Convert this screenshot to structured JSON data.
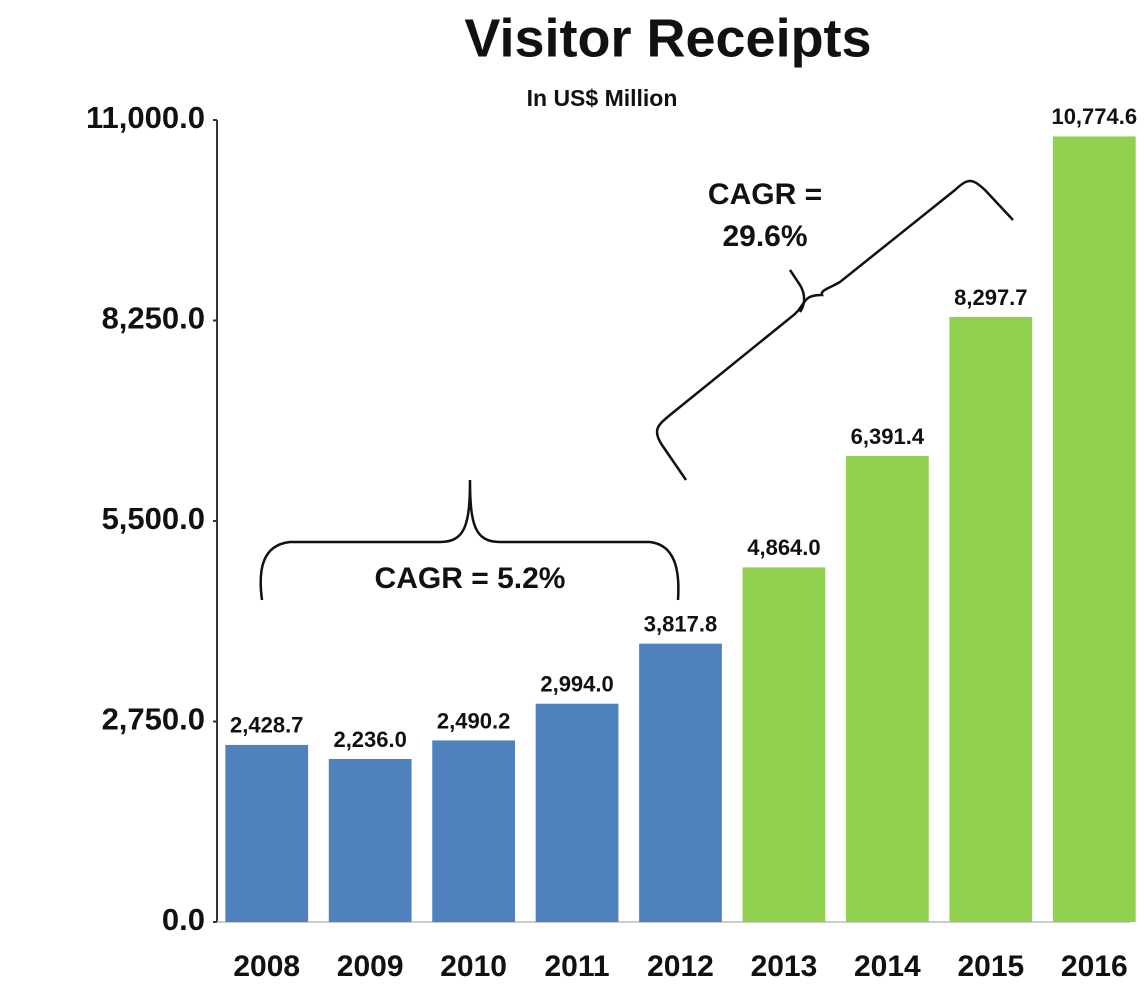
{
  "chart_data": {
    "type": "bar",
    "title": "Visitor Receipts",
    "subtitle": "In US$ Million",
    "categories": [
      "2008",
      "2009",
      "2010",
      "2011",
      "2012",
      "2013",
      "2014",
      "2015",
      "2016"
    ],
    "values": [
      2428.7,
      2236.0,
      2490.2,
      2994.0,
      3817.8,
      4864.0,
      6391.4,
      8297.7,
      10774.6
    ],
    "value_labels": [
      "2,428.7",
      "2,236.0",
      "2,490.2",
      "2,994.0",
      "3,817.8",
      "4,864.0",
      "6,391.4",
      "8,297.7",
      "10,774.6"
    ],
    "colors": [
      "#4f81bd",
      "#4f81bd",
      "#4f81bd",
      "#4f81bd",
      "#4f81bd",
      "#92d050",
      "#92d050",
      "#92d050",
      "#92d050"
    ],
    "ylim": [
      0,
      11000
    ],
    "yticks": [
      {
        "value": 0,
        "label": "0.0"
      },
      {
        "value": 2750,
        "label": "2,750.0"
      },
      {
        "value": 5500,
        "label": "5,500.0"
      },
      {
        "value": 8250,
        "label": "8,250.0"
      },
      {
        "value": 11000,
        "label": "11,000.0"
      }
    ],
    "grid": false,
    "annotations": [
      {
        "lines": [
          "CAGR = 5.2%"
        ]
      },
      {
        "lines": [
          "CAGR =",
          "29.6%"
        ]
      }
    ]
  }
}
